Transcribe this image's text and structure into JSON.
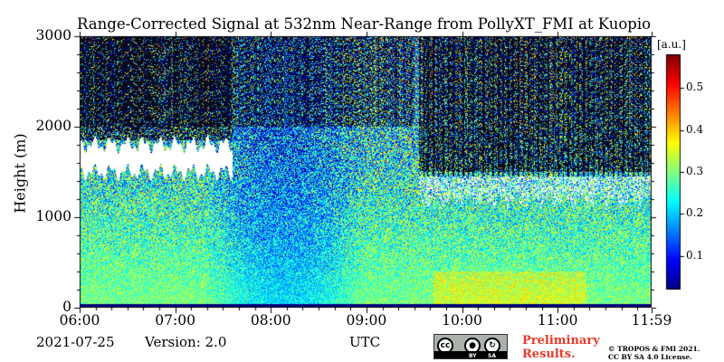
{
  "chart_data": {
    "type": "heatmap",
    "title": "Range-Corrected Signal at 532nm Near-Range from PollyXT_FMI at Kuopio",
    "xlabel": "",
    "ylabel": "Height (m)",
    "x_ticks": [
      "06:00",
      "07:00",
      "08:00",
      "09:00",
      "10:00",
      "11:00",
      "11:59"
    ],
    "x_tick_hours": [
      6,
      7,
      8,
      9,
      10,
      11,
      11.983
    ],
    "xlim_hours": [
      6,
      11.983
    ],
    "y_ticks": [
      "0",
      "1000",
      "2000",
      "3000"
    ],
    "y_tick_values": [
      0,
      1000,
      2000,
      3000
    ],
    "ylim": [
      0,
      3000
    ],
    "colorbar": {
      "unit": "[a.u.]",
      "ticks": [
        "0.1",
        "0.2",
        "0.3",
        "0.4",
        "0.5"
      ],
      "tick_values": [
        0.1,
        0.2,
        0.3,
        0.4,
        0.5
      ],
      "range": [
        0.02,
        0.58
      ],
      "colormap": "jet-like (blue-cyan-green-yellow-red)"
    },
    "cloud_layers": [
      {
        "start_hours": 6.0,
        "end_hours": 7.6,
        "base_m": 1500,
        "top_m": 1800
      },
      {
        "start_hours": 9.55,
        "end_hours": 11.98,
        "base_m": 1180,
        "top_m": 1450
      }
    ]
  },
  "footer": {
    "date": "2021-07-25",
    "version": "Version: 2.0",
    "timezone": "UTC",
    "license_badge": "cc-by-sa-icon",
    "license_by": "BY",
    "license_sa": "SA",
    "preliminary_line1": "Preliminary",
    "preliminary_line2": "Results.",
    "copyright_line1": "© TROPOS & FMI 2021.",
    "copyright_line2": "CC BY SA 4.0 License."
  },
  "colors": {
    "prelim": "#e8392b"
  }
}
